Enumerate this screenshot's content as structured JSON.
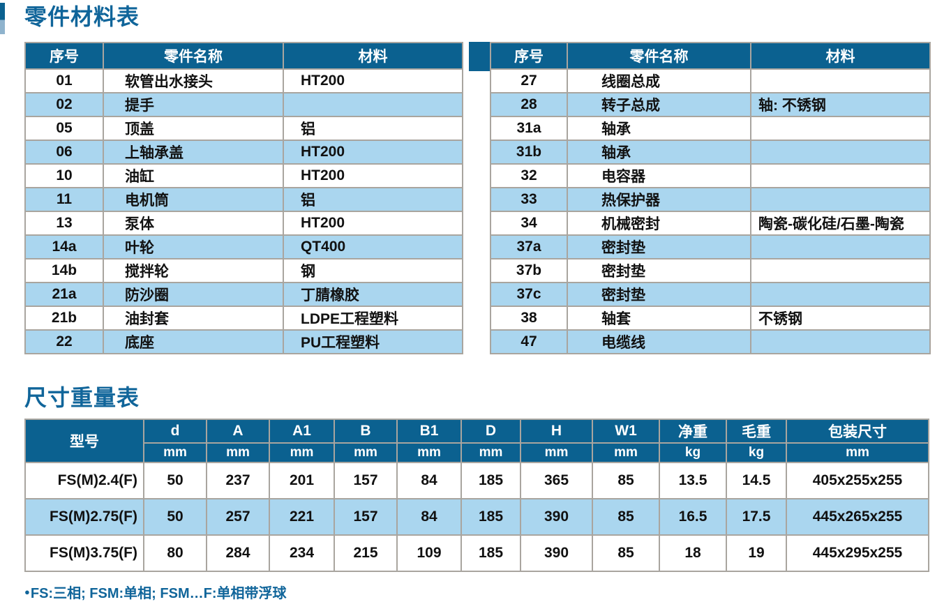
{
  "colors": {
    "header-blue": "#0b6190",
    "row-blue": "#aad6ef",
    "grid-gray": "#a9a59f",
    "title-blue": "#10659a",
    "text-black": "#111111"
  },
  "parts_section": {
    "title": "零件材料表",
    "headers": [
      "序号",
      "零件名称",
      "材料"
    ],
    "left_rows": [
      [
        "01",
        "软管出水接头",
        "HT200"
      ],
      [
        "02",
        "提手",
        ""
      ],
      [
        "05",
        "顶盖",
        "铝"
      ],
      [
        "06",
        "上轴承盖",
        "HT200"
      ],
      [
        "10",
        "油缸",
        "HT200"
      ],
      [
        "11",
        "电机筒",
        "铝"
      ],
      [
        "13",
        "泵体",
        "HT200"
      ],
      [
        "14a",
        "叶轮",
        "QT400"
      ],
      [
        "14b",
        "搅拌轮",
        "钢"
      ],
      [
        "21a",
        "防沙圈",
        "丁腈橡胶"
      ],
      [
        "21b",
        "油封套",
        "LDPE工程塑料"
      ],
      [
        "22",
        "底座",
        "PU工程塑料"
      ]
    ],
    "right_rows": [
      [
        "27",
        "线圈总成",
        ""
      ],
      [
        "28",
        "转子总成",
        "轴: 不锈钢"
      ],
      [
        "31a",
        "轴承",
        ""
      ],
      [
        "31b",
        "轴承",
        ""
      ],
      [
        "32",
        "电容器",
        ""
      ],
      [
        "33",
        "热保护器",
        ""
      ],
      [
        "34",
        "机械密封",
        "陶瓷-碳化硅/石墨-陶瓷"
      ],
      [
        "37a",
        "密封垫",
        ""
      ],
      [
        "37b",
        "密封垫",
        ""
      ],
      [
        "37c",
        "密封垫",
        ""
      ],
      [
        "38",
        "轴套",
        "不锈钢"
      ],
      [
        "47",
        "电缆线",
        ""
      ]
    ]
  },
  "dimensions_section": {
    "title": "尺寸重量表",
    "model_header": "型号",
    "columns": [
      {
        "label": "d",
        "unit": "mm"
      },
      {
        "label": "A",
        "unit": "mm"
      },
      {
        "label": "A1",
        "unit": "mm"
      },
      {
        "label": "B",
        "unit": "mm"
      },
      {
        "label": "B1",
        "unit": "mm"
      },
      {
        "label": "D",
        "unit": "mm"
      },
      {
        "label": "H",
        "unit": "mm"
      },
      {
        "label": "W1",
        "unit": "mm"
      },
      {
        "label": "净重",
        "unit": "kg"
      },
      {
        "label": "毛重",
        "unit": "kg"
      },
      {
        "label": "包装尺寸",
        "unit": "mm"
      }
    ],
    "rows": [
      {
        "model": "FS(M)2.4(F)",
        "values": [
          "50",
          "237",
          "201",
          "157",
          "84",
          "185",
          "365",
          "85",
          "13.5",
          "14.5",
          "405x255x255"
        ]
      },
      {
        "model": "FS(M)2.75(F)",
        "values": [
          "50",
          "257",
          "221",
          "157",
          "84",
          "185",
          "390",
          "85",
          "16.5",
          "17.5",
          "445x265x255"
        ]
      },
      {
        "model": "FS(M)3.75(F)",
        "values": [
          "80",
          "284",
          "234",
          "215",
          "109",
          "185",
          "390",
          "85",
          "18",
          "19",
          "445x295x255"
        ]
      }
    ]
  },
  "footnote": {
    "bullet": "●",
    "text": "FS:三相; FSM:单相; FSM…F:单相带浮球"
  }
}
